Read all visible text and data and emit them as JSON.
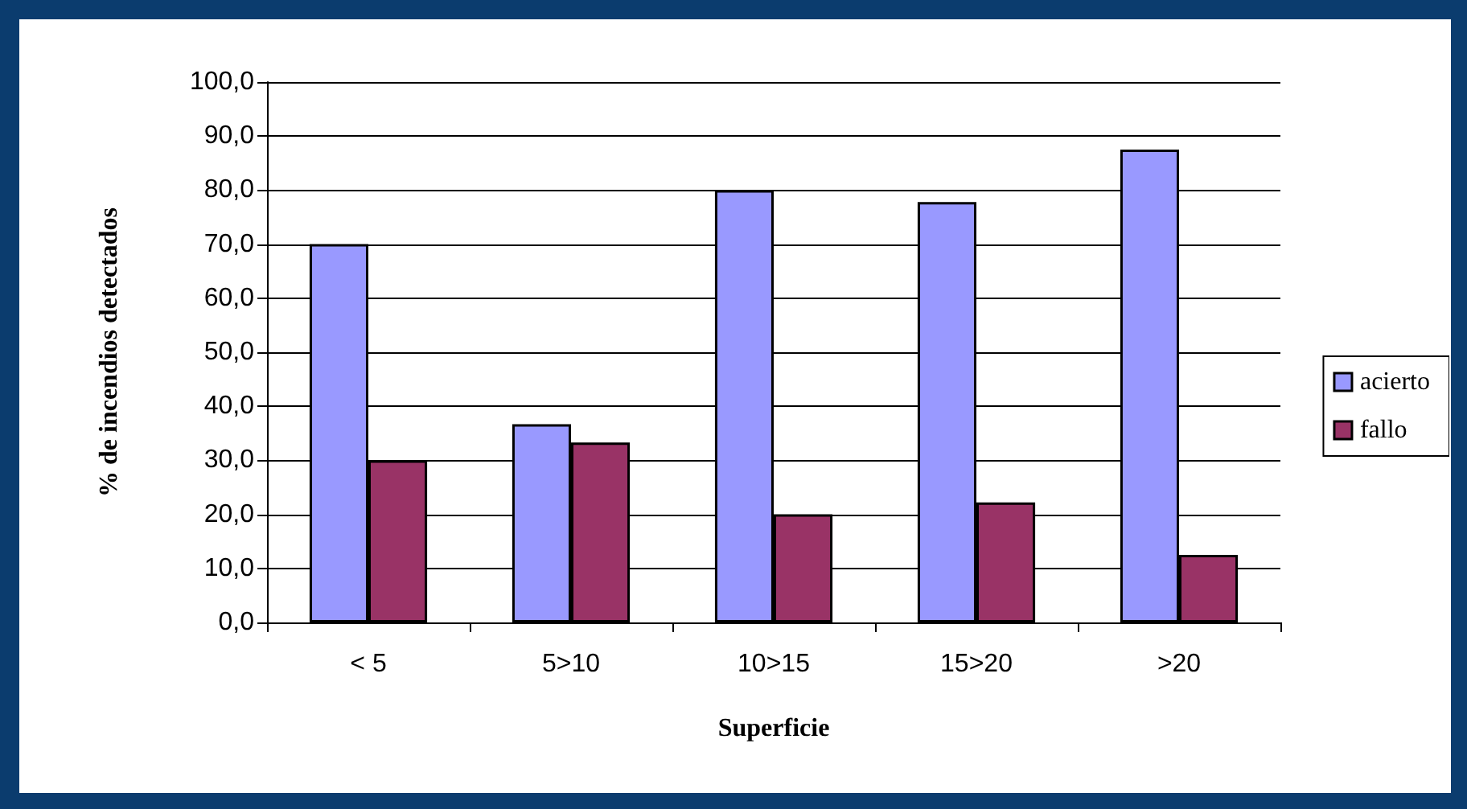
{
  "chart_data": {
    "type": "bar",
    "xlabel": "Superficie",
    "ylabel": "% de incendios detectados",
    "categories": [
      "< 5",
      "5>10",
      "10>15",
      "15>20",
      ">20"
    ],
    "series": [
      {
        "name": "acierto",
        "color": "#9999ff",
        "values": [
          70.0,
          36.7,
          80.0,
          77.8,
          87.5
        ]
      },
      {
        "name": "fallo",
        "color": "#993366",
        "values": [
          30.0,
          33.3,
          20.0,
          22.2,
          12.5
        ]
      }
    ],
    "ylim": [
      0,
      100
    ],
    "yticks": [
      {
        "value": 0,
        "label": "0,0"
      },
      {
        "value": 10,
        "label": "10,0"
      },
      {
        "value": 20,
        "label": "20,0"
      },
      {
        "value": 30,
        "label": "30,0"
      },
      {
        "value": 40,
        "label": "40,0"
      },
      {
        "value": 50,
        "label": "50,0"
      },
      {
        "value": 60,
        "label": "60,0"
      },
      {
        "value": 70,
        "label": "70,0"
      },
      {
        "value": 80,
        "label": "80,0"
      },
      {
        "value": 90,
        "label": "90,0"
      },
      {
        "value": 100,
        "label": "100,0"
      }
    ],
    "grid": "y",
    "legend": "right"
  }
}
